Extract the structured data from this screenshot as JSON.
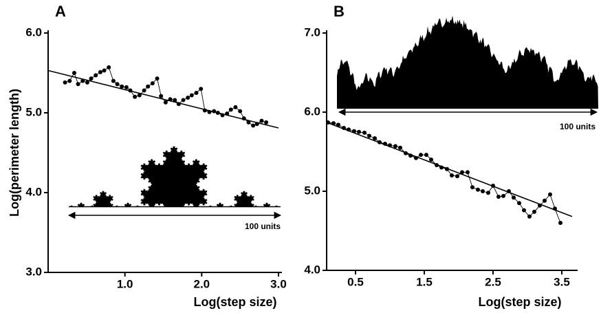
{
  "chart_data": [
    {
      "type": "line",
      "panel_label": "A",
      "xlabel": "Log(step size)",
      "ylabel": "Log(perimeter length)",
      "annotation": "100 units",
      "xlim": [
        0.0,
        3.0
      ],
      "ylim": [
        3.0,
        6.0
      ],
      "xticks": [
        {
          "value": 1,
          "label": "1.0"
        },
        {
          "value": 2,
          "label": "2.0"
        },
        {
          "value": 3,
          "label": "3.0"
        }
      ],
      "yticks": [
        {
          "value": 3,
          "label": "3.0"
        },
        {
          "value": 4,
          "label": "4.0"
        },
        {
          "value": 5,
          "label": "5.0"
        },
        {
          "value": 6,
          "label": "6.0"
        }
      ],
      "color": "#000000",
      "x": [
        0.22,
        0.28,
        0.34,
        0.39,
        0.45,
        0.51,
        0.56,
        0.62,
        0.68,
        0.73,
        0.79,
        0.85,
        0.9,
        0.96,
        1.02,
        1.07,
        1.13,
        1.19,
        1.25,
        1.3,
        1.36,
        1.42,
        1.47,
        1.53,
        1.59,
        1.65,
        1.7,
        1.76,
        1.82,
        1.87,
        1.93,
        1.99,
        2.04,
        2.1,
        2.16,
        2.21,
        2.27,
        2.33,
        2.38,
        2.44,
        2.5,
        2.55,
        2.61,
        2.67,
        2.72,
        2.78,
        2.84
      ],
      "values": [
        5.38,
        5.4,
        5.5,
        5.36,
        5.4,
        5.38,
        5.43,
        5.47,
        5.51,
        5.53,
        5.57,
        5.4,
        5.36,
        5.33,
        5.32,
        5.28,
        5.2,
        5.22,
        5.28,
        5.33,
        5.37,
        5.43,
        5.21,
        5.13,
        5.17,
        5.16,
        5.11,
        5.16,
        5.19,
        5.22,
        5.25,
        5.3,
        5.03,
        5.01,
        5.02,
        5.0,
        4.97,
        4.99,
        5.04,
        5.07,
        5.02,
        4.93,
        4.88,
        4.84,
        4.86,
        4.9,
        4.88
      ],
      "fit_line": {
        "x": [
          0.0,
          3.0
        ],
        "values": [
          5.53,
          4.81
        ]
      }
    },
    {
      "type": "line",
      "panel_label": "B",
      "xlabel": "Log(step size)",
      "annotation": "100 units",
      "xlim": [
        0.08,
        3.68
      ],
      "ylim": [
        4.0,
        7.0
      ],
      "xticks": [
        0.5,
        1.5,
        2.5,
        3.5
      ],
      "yticks": [
        {
          "value": 4,
          "label": "4.0"
        },
        {
          "value": 5,
          "label": "5.0"
        },
        {
          "value": 6,
          "label": "6.0"
        },
        {
          "value": 7,
          "label": "7.0"
        }
      ],
      "color": "#000000",
      "x": [
        0.1,
        0.18,
        0.25,
        0.33,
        0.4,
        0.48,
        0.55,
        0.63,
        0.7,
        0.78,
        0.85,
        0.93,
        1.0,
        1.08,
        1.15,
        1.23,
        1.3,
        1.38,
        1.45,
        1.53,
        1.6,
        1.68,
        1.75,
        1.83,
        1.9,
        1.98,
        2.05,
        2.13,
        2.2,
        2.28,
        2.35,
        2.43,
        2.5,
        2.58,
        2.65,
        2.73,
        2.8,
        2.88,
        2.95,
        3.03,
        3.1,
        3.18,
        3.25,
        3.33,
        3.4,
        3.48
      ],
      "values": [
        5.87,
        5.86,
        5.84,
        5.8,
        5.78,
        5.76,
        5.75,
        5.74,
        5.7,
        5.67,
        5.62,
        5.6,
        5.58,
        5.57,
        5.55,
        5.48,
        5.45,
        5.42,
        5.46,
        5.46,
        5.4,
        5.33,
        5.3,
        5.28,
        5.2,
        5.19,
        5.24,
        5.24,
        5.05,
        5.02,
        5.0,
        4.98,
        5.07,
        4.93,
        4.94,
        5.0,
        4.92,
        4.85,
        4.76,
        4.68,
        4.74,
        4.82,
        4.88,
        4.96,
        4.78,
        4.6
      ],
      "fit_line": {
        "x": [
          0.08,
          3.65
        ],
        "values": [
          5.87,
          4.68
        ]
      }
    }
  ]
}
